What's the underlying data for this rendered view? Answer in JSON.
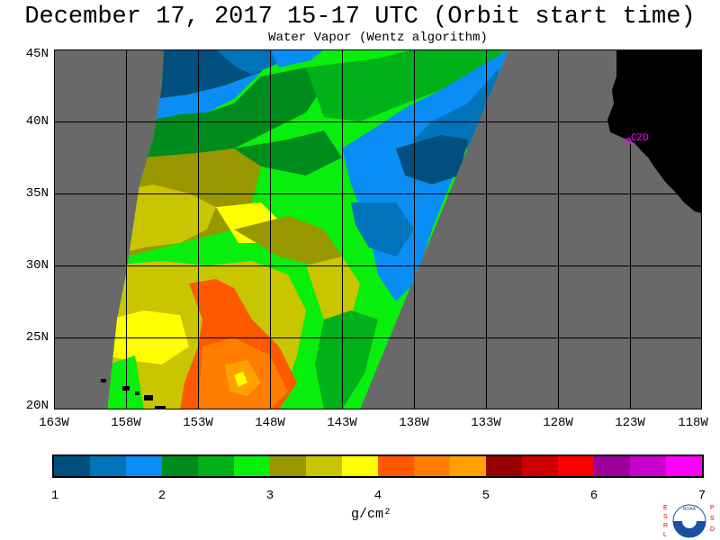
{
  "header": {
    "title": "December 17, 2017  15-17 UTC  (Orbit start time)",
    "subtitle": "Water Vapor (Wentz algorithm)"
  },
  "axes": {
    "lat_labels": [
      "45N",
      "40N",
      "35N",
      "30N",
      "25N",
      "20N"
    ],
    "lon_labels": [
      "163W",
      "158W",
      "153W",
      "148W",
      "143W",
      "138W",
      "133W",
      "128W",
      "123W",
      "118W"
    ]
  },
  "map": {
    "city_label": "CZD",
    "colors": {
      "land": "#000000",
      "no_data": "#696969",
      "grid": "#000000",
      "city": "#ff00ff"
    }
  },
  "colorbar": {
    "ticks": [
      "1",
      "2",
      "3",
      "4",
      "5",
      "6",
      "7"
    ],
    "unit": "g/cm²",
    "colors": [
      "#004f7e",
      "#0073bb",
      "#0a8df5",
      "#008c1c",
      "#00b11a",
      "#08ee0d",
      "#989700",
      "#c9c500",
      "#ffff00",
      "#fe5800",
      "#ff7e00",
      "#ffa000",
      "#990000",
      "#cc0000",
      "#ff0000",
      "#9c009b",
      "#cc00cc",
      "#ff00ff"
    ]
  },
  "logo": {
    "left_letters": "ESRL",
    "right_letters": "PSD",
    "emblem_text": "NOAA"
  }
}
